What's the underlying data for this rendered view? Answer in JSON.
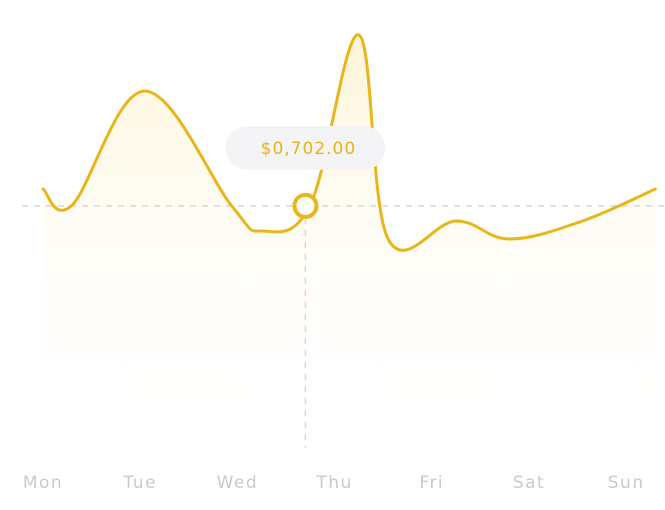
{
  "colors": {
    "line": "#e8b61a",
    "area_top": "#fdf3d2",
    "guide": "#d6d6d6",
    "tooltip_bg": "#f4f4f7",
    "tooltip_text": "#e6b318",
    "axis_text": "#c9c9cc"
  },
  "chart_data": {
    "type": "area",
    "categories": [
      "Mon",
      "Tue",
      "Wed",
      "Thu",
      "Fri",
      "Sat",
      "Sun"
    ],
    "points": [
      {
        "x": 0.0,
        "y": 0.745
      },
      {
        "x": 0.3,
        "y": 0.705
      },
      {
        "x": 1.05,
        "y": 0.99
      },
      {
        "x": 1.95,
        "y": 0.7
      },
      {
        "x": 2.25,
        "y": 0.64
      },
      {
        "x": 2.75,
        "y": 0.705
      },
      {
        "x": 3.25,
        "y": 1.13
      },
      {
        "x": 3.55,
        "y": 0.62
      },
      {
        "x": 4.25,
        "y": 0.665
      },
      {
        "x": 4.8,
        "y": 0.62
      },
      {
        "x": 5.55,
        "y": 0.665
      },
      {
        "x": 6.3,
        "y": 0.745
      }
    ],
    "ylim": [
      0,
      1.2
    ],
    "highlight": {
      "category": "Thu",
      "value": 0.702,
      "label": "$0,702.00"
    },
    "grid": false,
    "legend": "none"
  }
}
